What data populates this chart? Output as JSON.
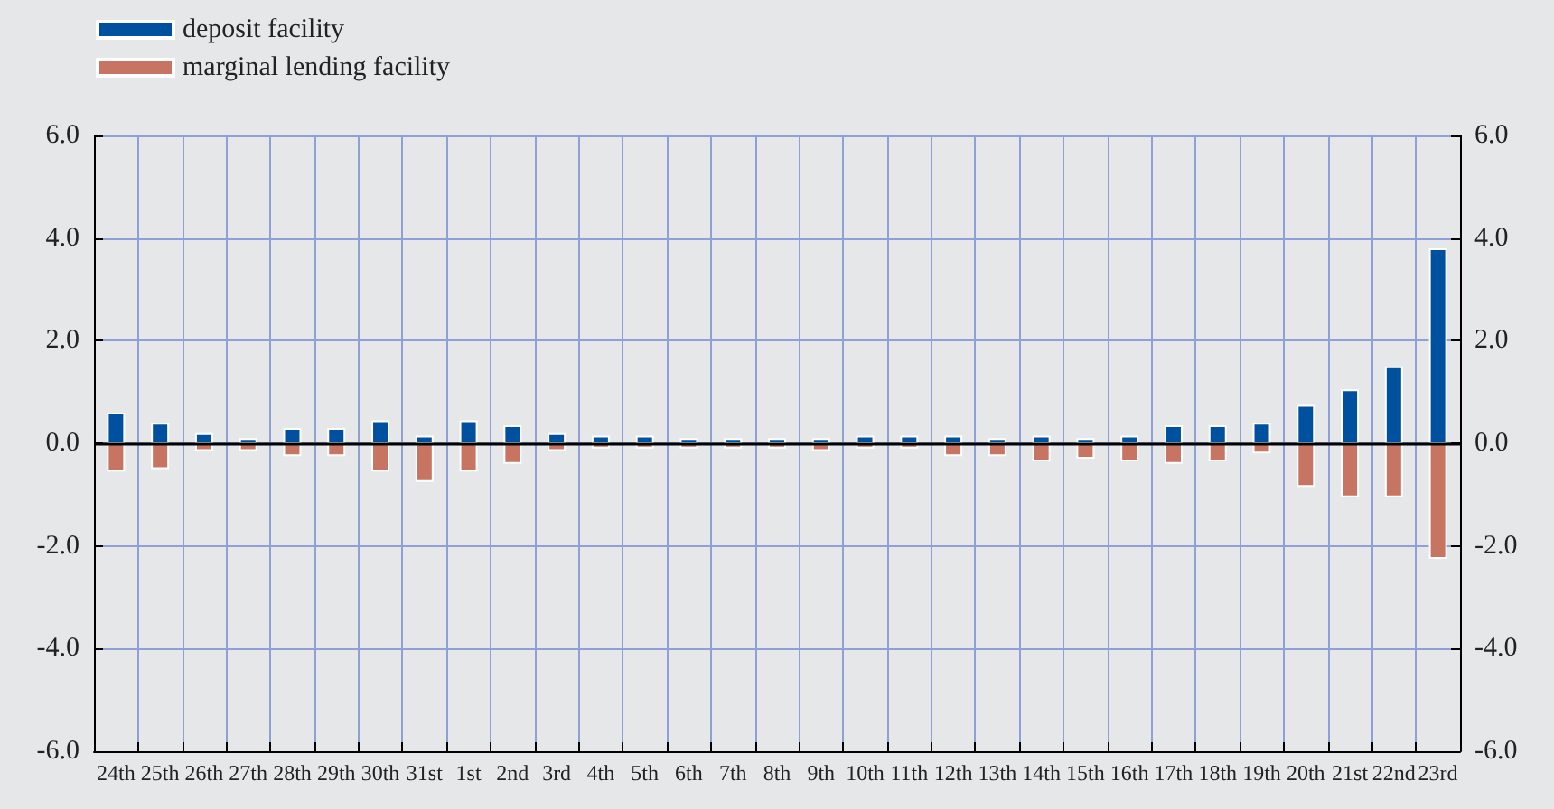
{
  "chart_data": {
    "type": "bar",
    "categories": [
      "24th",
      "25th",
      "26th",
      "27th",
      "28th",
      "29th",
      "30th",
      "31st",
      "1st",
      "2nd",
      "3rd",
      "4th",
      "5th",
      "6th",
      "7th",
      "8th",
      "9th",
      "10th",
      "11th",
      "12th",
      "13th",
      "14th",
      "15th",
      "16th",
      "17th",
      "18th",
      "19th",
      "20th",
      "21st",
      "22nd",
      "23rd"
    ],
    "series": [
      {
        "name": "deposit facility",
        "color": "#0050a0",
        "values": [
          0.6,
          0.4,
          0.2,
          0.1,
          0.3,
          0.3,
          0.45,
          0.15,
          0.45,
          0.35,
          0.2,
          0.15,
          0.15,
          0.1,
          0.1,
          0.1,
          0.1,
          0.15,
          0.15,
          0.15,
          0.1,
          0.15,
          0.1,
          0.15,
          0.35,
          0.35,
          0.4,
          0.75,
          1.05,
          1.5,
          3.8
        ]
      },
      {
        "name": "marginal lending facility",
        "color": "#c87462",
        "values": [
          -0.55,
          -0.5,
          -0.15,
          -0.15,
          -0.25,
          -0.25,
          -0.55,
          -0.75,
          -0.55,
          -0.4,
          -0.15,
          -0.1,
          -0.1,
          -0.1,
          -0.1,
          -0.1,
          -0.15,
          -0.1,
          -0.1,
          -0.25,
          -0.25,
          -0.35,
          -0.3,
          -0.35,
          -0.4,
          -0.35,
          -0.2,
          -0.85,
          -1.05,
          -1.05,
          -2.25
        ]
      }
    ],
    "ylim": [
      -6,
      6
    ],
    "yticks": [
      {
        "value": -6,
        "label": "-6.0"
      },
      {
        "value": -4,
        "label": "-4.0"
      },
      {
        "value": -2,
        "label": "-2.0"
      },
      {
        "value": 0,
        "label": "0.0"
      },
      {
        "value": 2,
        "label": "2.0"
      },
      {
        "value": 4,
        "label": "4.0"
      },
      {
        "value": 6,
        "label": "6.0"
      }
    ],
    "y2lim": [
      -6,
      6
    ],
    "y2ticks": [
      {
        "value": -6,
        "label": "-6.0"
      },
      {
        "value": -4,
        "label": "-4.0"
      },
      {
        "value": -2,
        "label": "-2.0"
      },
      {
        "value": 0,
        "label": "0.0"
      },
      {
        "value": 2,
        "label": "2.0"
      },
      {
        "value": 4,
        "label": "4.0"
      },
      {
        "value": 6,
        "label": "6.0"
      }
    ],
    "grid": true,
    "stacked": true,
    "legend": "top left"
  }
}
